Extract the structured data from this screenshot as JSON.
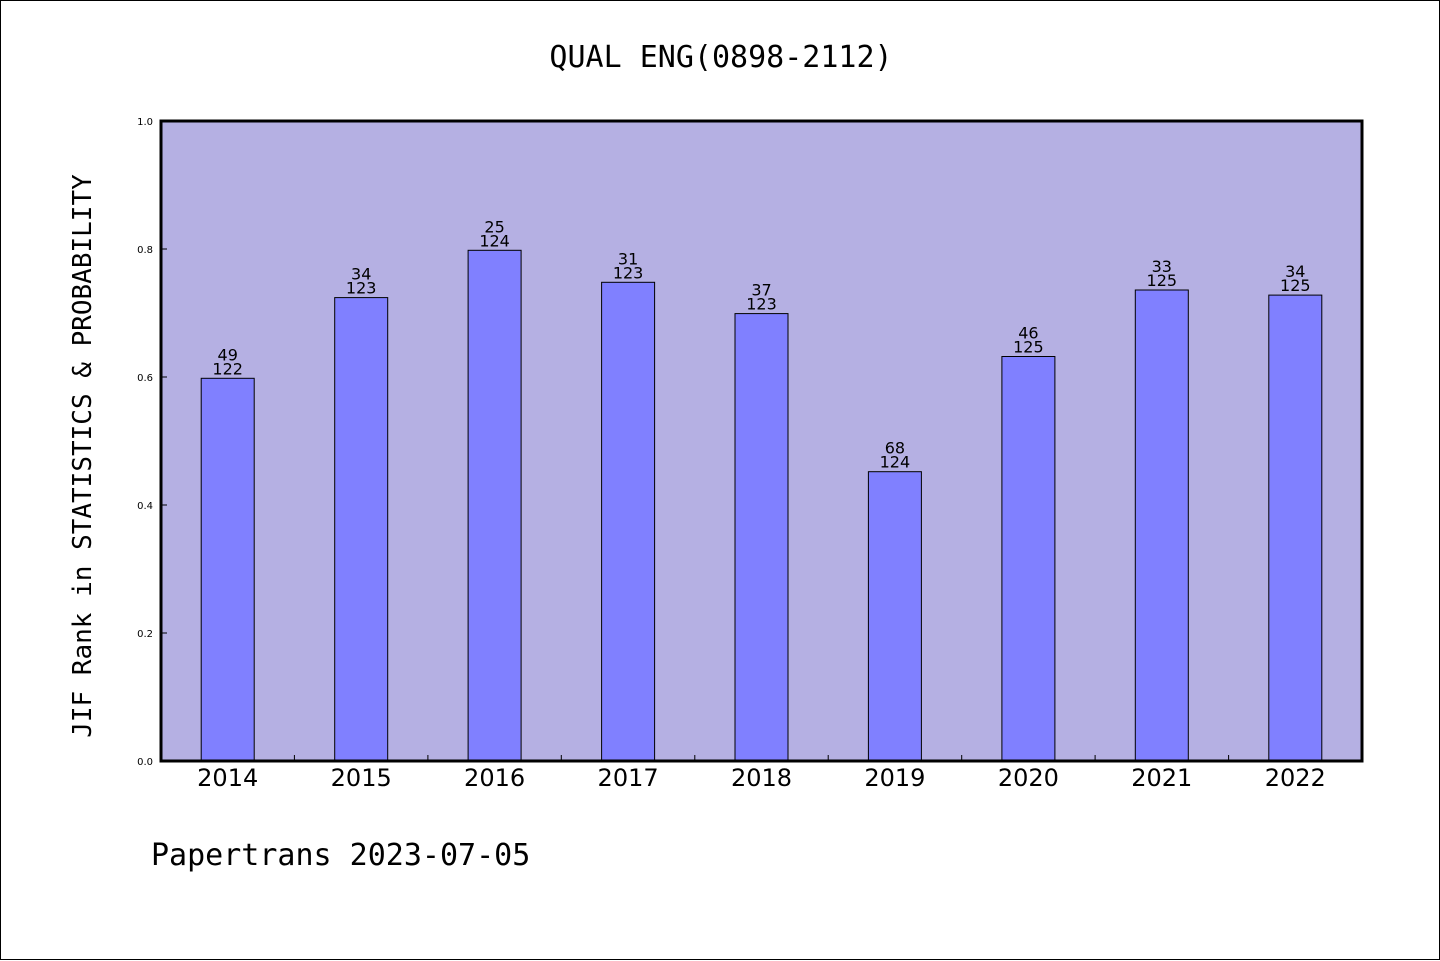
{
  "chart_data": {
    "type": "bar",
    "title": "QUAL ENG(0898-2112)",
    "xlabel": "",
    "ylabel": "JIF Rank in STATISTICS & PROBABILITY",
    "categories": [
      "2014",
      "2015",
      "2016",
      "2017",
      "2018",
      "2019",
      "2020",
      "2021",
      "2022"
    ],
    "values": [
      0.598,
      0.724,
      0.798,
      0.748,
      0.699,
      0.452,
      0.632,
      0.736,
      0.728
    ],
    "ranks": [
      "49",
      "34",
      "25",
      "31",
      "37",
      "68",
      "46",
      "33",
      "34"
    ],
    "totals": [
      "122",
      "123",
      "124",
      "123",
      "123",
      "124",
      "125",
      "125",
      "125"
    ],
    "ylim": [
      0,
      1.0
    ],
    "yticks": [
      "0.0",
      "0.2",
      "0.4",
      "0.6",
      "0.8",
      "1.0"
    ],
    "grid": false,
    "colors": {
      "plot_background": "#b5b0e3",
      "bar_fill": "#8080ff",
      "bar_stroke": "#000000"
    }
  },
  "footer": "Papertrans 2023-07-05"
}
